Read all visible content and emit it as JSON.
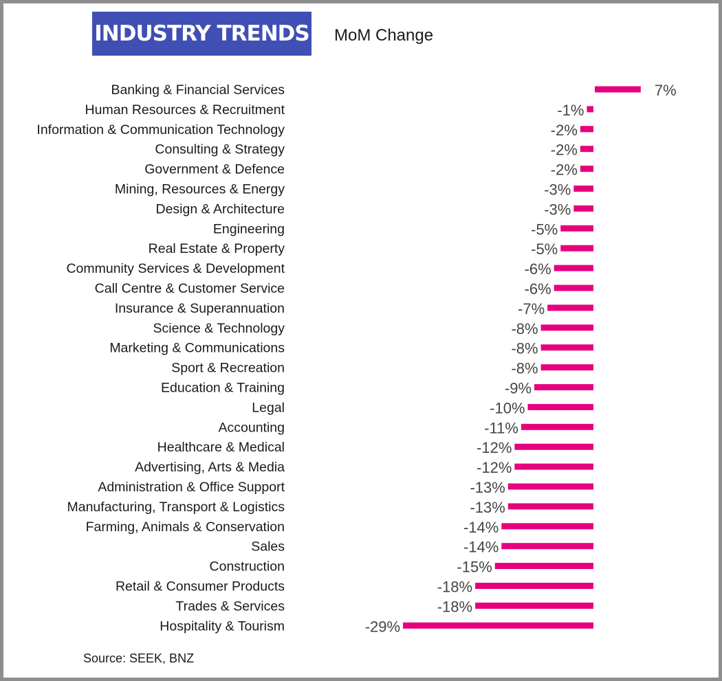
{
  "header": {
    "title": "INDUSTRY TRENDS",
    "subtitle": "MoM Change"
  },
  "footer": {
    "source": "Source: SEEK, BNZ"
  },
  "colors": {
    "title_bg": "#3f4fb3",
    "title_text": "#ffffff",
    "bar": "#e6007e",
    "label_text": "#1a1a1a",
    "value_text": "#444444"
  },
  "chart_data": {
    "type": "bar",
    "orientation": "horizontal",
    "title": "INDUSTRY TRENDS",
    "subtitle": "MoM Change",
    "categories": [
      "Banking & Financial Services",
      "Human Resources & Recruitment",
      "Information & Communication Technology",
      "Consulting & Strategy",
      "Government & Defence",
      "Mining, Resources & Energy",
      "Design & Architecture",
      "Engineering",
      "Real Estate & Property",
      "Community Services & Development",
      "Call Centre & Customer Service",
      "Insurance & Superannuation",
      "Science & Technology",
      "Marketing & Communications",
      "Sport & Recreation",
      "Education & Training",
      "Legal",
      "Accounting",
      "Healthcare & Medical",
      "Advertising, Arts & Media",
      "Administration & Office Support",
      "Manufacturing, Transport & Logistics",
      "Farming, Animals & Conservation",
      "Sales",
      "Construction",
      "Retail & Consumer Products",
      "Trades & Services",
      "Hospitality & Tourism"
    ],
    "values": [
      7,
      -1,
      -2,
      -2,
      -2,
      -3,
      -3,
      -5,
      -5,
      -6,
      -6,
      -7,
      -8,
      -8,
      -8,
      -9,
      -10,
      -11,
      -12,
      -12,
      -13,
      -13,
      -14,
      -14,
      -15,
      -18,
      -18,
      -29
    ],
    "value_labels": [
      "7%",
      "-1%",
      "-2%",
      "-2%",
      "-2%",
      "-3%",
      "-3%",
      "-5%",
      "-5%",
      "-6%",
      "-6%",
      "-7%",
      "-8%",
      "-8%",
      "-8%",
      "-9%",
      "-10%",
      "-11%",
      "-12%",
      "-12%",
      "-13%",
      "-13%",
      "-14%",
      "-14%",
      "-15%",
      "-18%",
      "-18%",
      "-29%"
    ],
    "unit": "%",
    "xlabel": "",
    "ylabel": "",
    "xlim": [
      -30,
      8
    ],
    "grid": false,
    "legend": "none"
  }
}
